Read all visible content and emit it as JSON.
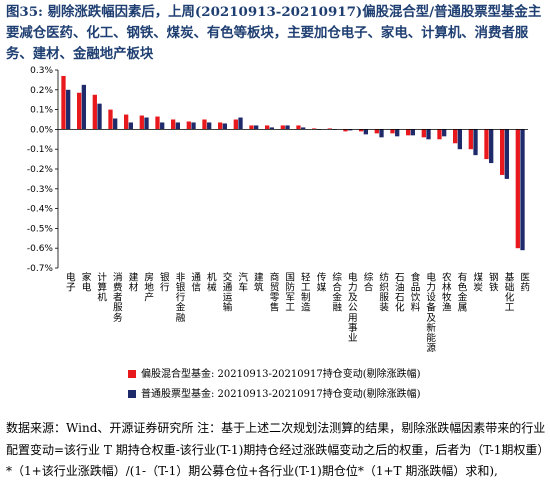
{
  "title": {
    "figure_no": "图35:",
    "text": "剔除涨跌幅因素后，上周(20210913-20210917)偏股混合型/普通股票型基金主要减仓医药、化工、钢铁、煤炭、有色等板块，主要加仓电子、家电、计算机、消费者服务、建材、金融地产板块"
  },
  "source": {
    "text": "数据来源：Wind、开源证券研究所  注：基于上述二次规划法测算的结果，剔除涨跌幅因素带来的行业配置变动=该行业 T 期持仓权重-该行业(T-1)期持仓经过涨跌幅变动之后的权重，后者为（T-1期权重）*（1+该行业涨跌幅）/(1-（T-1）期公募仓位+各行业(T-1)期仓位*（1+T 期涨跌幅）求和),"
  },
  "chart_data": {
    "type": "bar",
    "title": "",
    "xlabel": "",
    "ylabel": "",
    "ylim": [
      -0.7,
      0.3
    ],
    "yticks": [
      "-0.7%",
      "-0.6%",
      "-0.5%",
      "-0.4%",
      "-0.3%",
      "-0.2%",
      "-0.1%",
      "0.0%",
      "0.1%",
      "0.2%",
      "0.3%"
    ],
    "ytick_values": [
      -0.7,
      -0.6,
      -0.5,
      -0.4,
      -0.3,
      -0.2,
      -0.1,
      0.0,
      0.1,
      0.2,
      0.3
    ],
    "grid": false,
    "legend_position": "bottom-left",
    "categories": [
      "电子",
      "家电",
      "计算机",
      "消费者服务",
      "建材",
      "房地产",
      "银行",
      "非银行金融",
      "通信",
      "机械",
      "交通运输",
      "汽车",
      "建筑",
      "商贸零售",
      "国防军工",
      "轻工制造",
      "传媒",
      "综合金融",
      "电力及公用事业",
      "综合",
      "纺织服装",
      "石油石化",
      "食品饮料",
      "电力设备及新能源",
      "农林牧渔",
      "有色金属",
      "煤炭",
      "钢铁",
      "基础化工",
      "医药"
    ],
    "series": [
      {
        "name": "偏股混合型基金: 20210913-20210917持仓变动(剔除涨跌幅)",
        "color": "#e8191d",
        "values": [
          0.27,
          0.185,
          0.175,
          0.1,
          0.075,
          0.07,
          0.065,
          0.05,
          0.04,
          0.05,
          0.035,
          0.05,
          0.02,
          0.02,
          0.02,
          0.02,
          0.005,
          0.005,
          -0.01,
          -0.01,
          -0.02,
          -0.02,
          -0.03,
          -0.04,
          -0.05,
          -0.07,
          -0.1,
          -0.15,
          -0.23,
          -0.6
        ]
      },
      {
        "name": "普通股票型基金: 20210913-20210917持仓变动(剔除涨跌幅)",
        "color": "#1f2a6b",
        "values": [
          0.2,
          0.225,
          0.13,
          0.055,
          0.035,
          0.06,
          0.035,
          0.035,
          0.035,
          0.035,
          0.03,
          0.06,
          0.02,
          0.01,
          0.02,
          0.01,
          0.0,
          0.0,
          -0.005,
          -0.025,
          -0.04,
          -0.035,
          -0.03,
          -0.05,
          -0.035,
          -0.1,
          -0.13,
          -0.17,
          -0.25,
          -0.61
        ]
      }
    ]
  }
}
